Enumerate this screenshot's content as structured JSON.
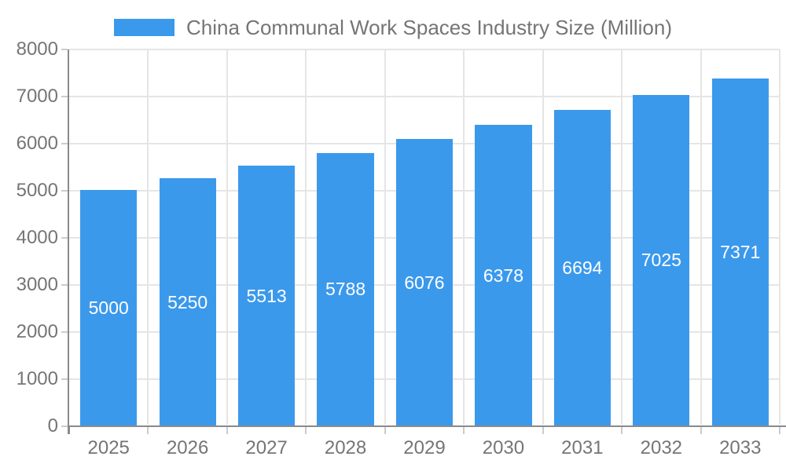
{
  "legend": {
    "label": "China Communal Work Spaces Industry Size (Million)"
  },
  "colors": {
    "bar": "#3b99ec",
    "bar_label": "#ffffff",
    "axis": "#8a8a8a",
    "grid": "#e5e5e5",
    "tick": "#cccccc",
    "tick_label": "#757575",
    "legend_text": "#757575",
    "background": "#ffffff"
  },
  "chart_data": {
    "type": "bar",
    "title": "China Communal Work Spaces Industry Size (Million)",
    "categories": [
      "2025",
      "2026",
      "2027",
      "2028",
      "2029",
      "2030",
      "2031",
      "2032",
      "2033"
    ],
    "series": [
      {
        "name": "China Communal Work Spaces Industry Size (Million)",
        "values": [
          5000,
          5250,
          5513,
          5788,
          6076,
          6378,
          6694,
          7025,
          7371
        ]
      }
    ],
    "bar_labels": [
      "5000",
      "5250",
      "5513",
      "5788",
      "6076",
      "6378",
      "6694",
      "7025",
      "7371"
    ],
    "xlabel": "",
    "ylabel": "",
    "ylim": [
      0,
      8000
    ],
    "ytick_step": 1000,
    "ytick_labels": [
      "0",
      "1000",
      "2000",
      "3000",
      "4000",
      "5000",
      "6000",
      "7000",
      "8000"
    ],
    "grid": true,
    "legend_position": "top-center",
    "value_label_position": "inside-center"
  }
}
